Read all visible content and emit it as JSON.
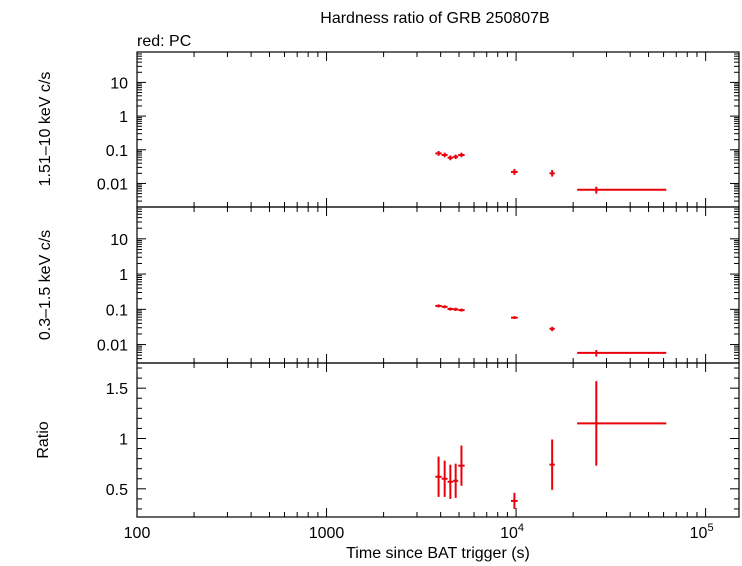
{
  "chart_data": {
    "type": "scatter",
    "title": "Hardness ratio of GRB 250807B",
    "note": "red: PC",
    "color": "#e8000b",
    "xlabel": "Time since BAT trigger (s)",
    "xscale": "log",
    "xlim": [
      100,
      150000
    ],
    "xticks": [
      {
        "value": 100,
        "label": "100"
      },
      {
        "value": 1000,
        "label": "1000"
      },
      {
        "value": 10000,
        "label": "10",
        "sup": "4"
      },
      {
        "value": 100000,
        "label": "10",
        "sup": "5"
      }
    ],
    "panels": [
      {
        "ylabel": "1.51–10 keV c/s",
        "yscale": "log",
        "ylim": [
          0.002,
          80
        ],
        "yticks": [
          {
            "value": 0.01,
            "label": "0.01"
          },
          {
            "value": 0.1,
            "label": "0.1"
          },
          {
            "value": 1,
            "label": "1"
          },
          {
            "value": 10,
            "label": "10"
          }
        ],
        "points": [
          {
            "x": 3900,
            "xerr": [
              150,
              150
            ],
            "y": 0.078,
            "yerr": [
              0.012,
              0.014
            ]
          },
          {
            "x": 4200,
            "xerr": [
              150,
              150
            ],
            "y": 0.07,
            "yerr": [
              0.01,
              0.012
            ]
          },
          {
            "x": 4500,
            "xerr": [
              150,
              150
            ],
            "y": 0.058,
            "yerr": [
              0.009,
              0.01
            ]
          },
          {
            "x": 4800,
            "xerr": [
              150,
              150
            ],
            "y": 0.062,
            "yerr": [
              0.009,
              0.01
            ]
          },
          {
            "x": 5150,
            "xerr": [
              200,
              200
            ],
            "y": 0.07,
            "yerr": [
              0.01,
              0.012
            ]
          },
          {
            "x": 9800,
            "xerr": [
              400,
              400
            ],
            "y": 0.022,
            "yerr": [
              0.004,
              0.005
            ]
          },
          {
            "x": 15500,
            "xerr": [
              500,
              500
            ],
            "y": 0.02,
            "yerr": [
              0.004,
              0.005
            ]
          },
          {
            "x": 26500,
            "xerr": [
              5500,
              35500
            ],
            "y": 0.0065,
            "yerr": [
              0.0015,
              0.0015
            ]
          }
        ]
      },
      {
        "ylabel": "0.3–1.5 keV c/s",
        "yscale": "log",
        "ylim": [
          0.003,
          80
        ],
        "yticks": [
          {
            "value": 0.01,
            "label": "0.01"
          },
          {
            "value": 0.1,
            "label": "0.1"
          },
          {
            "value": 1,
            "label": "1"
          },
          {
            "value": 10,
            "label": "10"
          }
        ],
        "points": [
          {
            "x": 3900,
            "xerr": [
              150,
              150
            ],
            "y": 0.125,
            "yerr": [
              0.012,
              0.013
            ]
          },
          {
            "x": 4200,
            "xerr": [
              150,
              150
            ],
            "y": 0.118,
            "yerr": [
              0.011,
              0.012
            ]
          },
          {
            "x": 4500,
            "xerr": [
              150,
              150
            ],
            "y": 0.102,
            "yerr": [
              0.01,
              0.011
            ]
          },
          {
            "x": 4800,
            "xerr": [
              150,
              150
            ],
            "y": 0.1,
            "yerr": [
              0.01,
              0.011
            ]
          },
          {
            "x": 5150,
            "xerr": [
              200,
              200
            ],
            "y": 0.095,
            "yerr": [
              0.009,
              0.01
            ]
          },
          {
            "x": 9800,
            "xerr": [
              400,
              400
            ],
            "y": 0.058,
            "yerr": [
              0.005,
              0.006
            ]
          },
          {
            "x": 15500,
            "xerr": [
              500,
              500
            ],
            "y": 0.028,
            "yerr": [
              0.004,
              0.004
            ]
          },
          {
            "x": 26500,
            "xerr": [
              5500,
              35500
            ],
            "y": 0.0058,
            "yerr": [
              0.0012,
              0.0012
            ]
          }
        ]
      },
      {
        "ylabel": "Ratio",
        "yscale": "linear",
        "ylim": [
          0.22,
          1.75
        ],
        "yticks": [
          {
            "value": 0.5,
            "label": "0.5"
          },
          {
            "value": 1,
            "label": "1"
          },
          {
            "value": 1.5,
            "label": "1.5"
          }
        ],
        "points": [
          {
            "x": 3900,
            "xerr": [
              150,
              150
            ],
            "y": 0.62,
            "yerr": [
              0.2,
              0.2
            ]
          },
          {
            "x": 4200,
            "xerr": [
              150,
              150
            ],
            "y": 0.6,
            "yerr": [
              0.18,
              0.18
            ]
          },
          {
            "x": 4500,
            "xerr": [
              150,
              150
            ],
            "y": 0.57,
            "yerr": [
              0.17,
              0.17
            ]
          },
          {
            "x": 4800,
            "xerr": [
              150,
              150
            ],
            "y": 0.58,
            "yerr": [
              0.17,
              0.17
            ]
          },
          {
            "x": 5150,
            "xerr": [
              200,
              200
            ],
            "y": 0.73,
            "yerr": [
              0.2,
              0.2
            ]
          },
          {
            "x": 9800,
            "xerr": [
              400,
              400
            ],
            "y": 0.38,
            "yerr": [
              0.08,
              0.08
            ]
          },
          {
            "x": 15500,
            "xerr": [
              500,
              500
            ],
            "y": 0.74,
            "yerr": [
              0.25,
              0.25
            ]
          },
          {
            "x": 26500,
            "xerr": [
              5500,
              35500
            ],
            "y": 1.15,
            "yerr": [
              0.42,
              0.42
            ]
          }
        ]
      }
    ]
  }
}
